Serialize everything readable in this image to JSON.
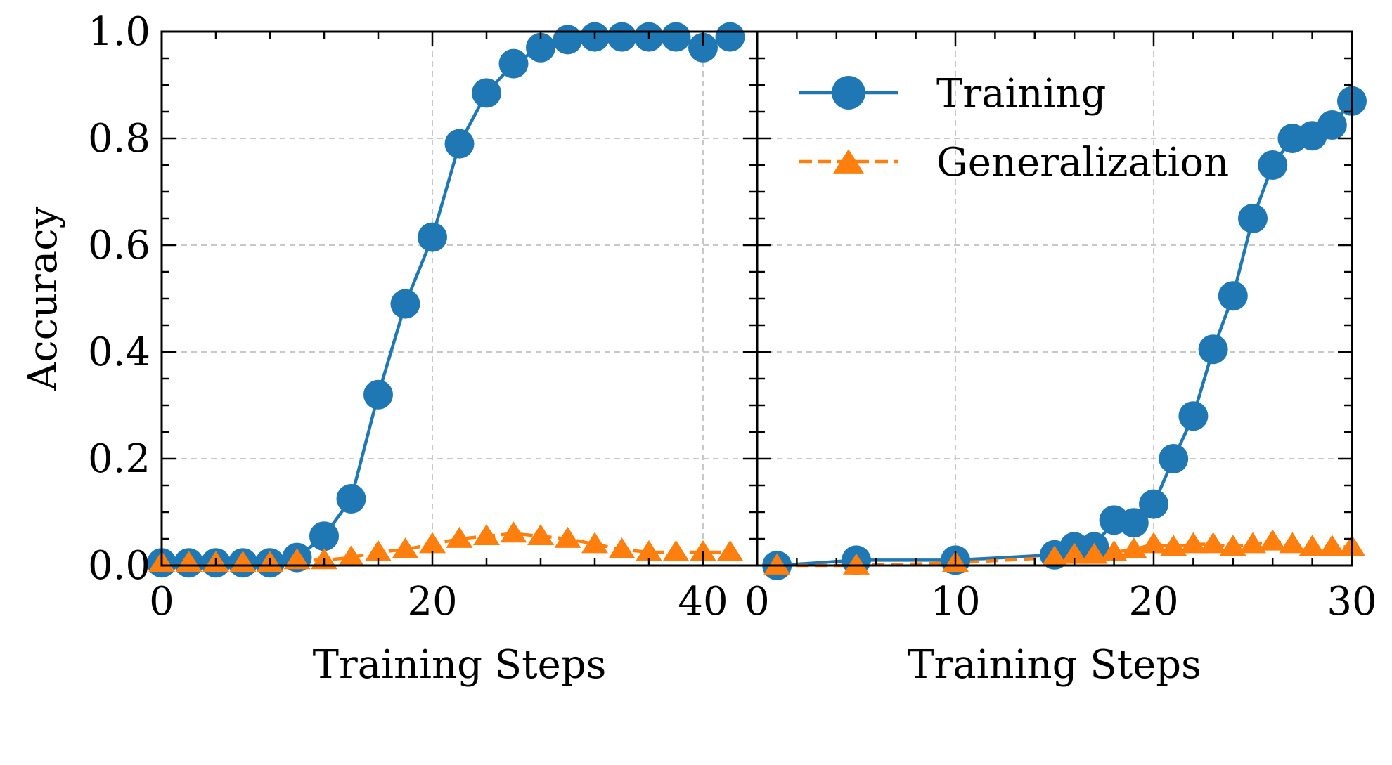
{
  "chart_data": [
    {
      "type": "line",
      "xlabel": "Training Steps",
      "ylabel": "Accuracy",
      "xlim": [
        0,
        44
      ],
      "ylim": [
        0,
        1.0
      ],
      "xticks": [
        0,
        20,
        40
      ],
      "yticks": [
        0.0,
        0.2,
        0.4,
        0.6,
        0.8,
        1.0
      ],
      "xtick_labels": [
        "0",
        "20",
        "40"
      ],
      "ytick_labels": [
        "0.0",
        "0.2",
        "0.4",
        "0.6",
        "0.8",
        "1.0"
      ],
      "grid": true,
      "series": [
        {
          "name": "Training",
          "color": "#1f77b4",
          "marker": "circle",
          "linestyle": "solid",
          "x": [
            0,
            2,
            4,
            6,
            8,
            10,
            12,
            14,
            16,
            18,
            20,
            22,
            24,
            26,
            28,
            30,
            32,
            34,
            36,
            38,
            40,
            42
          ],
          "y": [
            0.005,
            0.005,
            0.005,
            0.005,
            0.005,
            0.015,
            0.055,
            0.125,
            0.32,
            0.49,
            0.615,
            0.79,
            0.885,
            0.94,
            0.97,
            0.985,
            0.99,
            0.99,
            0.99,
            0.99,
            0.97,
            0.99
          ]
        },
        {
          "name": "Generalization",
          "color": "#ff7f0e",
          "marker": "triangle",
          "linestyle": "dashed",
          "x": [
            0,
            2,
            4,
            6,
            8,
            10,
            12,
            14,
            16,
            18,
            20,
            22,
            24,
            26,
            28,
            30,
            32,
            34,
            36,
            38,
            40,
            42
          ],
          "y": [
            0.005,
            0.005,
            0.005,
            0.005,
            0.005,
            0.01,
            0.01,
            0.015,
            0.025,
            0.03,
            0.04,
            0.05,
            0.055,
            0.06,
            0.055,
            0.05,
            0.04,
            0.03,
            0.025,
            0.025,
            0.025,
            0.025
          ]
        }
      ]
    },
    {
      "type": "line",
      "xlabel": "Training Steps",
      "ylabel": "",
      "xlim": [
        0,
        30
      ],
      "ylim": [
        0,
        1.0
      ],
      "xticks": [
        0,
        10,
        20,
        30
      ],
      "xtick_labels": [
        "0",
        "10",
        "20",
        "30"
      ],
      "grid": true,
      "legend": "top-left",
      "series": [
        {
          "name": "Training",
          "color": "#1f77b4",
          "marker": "circle",
          "linestyle": "solid",
          "x": [
            1,
            5,
            10,
            15,
            16,
            17,
            18,
            19,
            20,
            21,
            22,
            23,
            24,
            25,
            26,
            27,
            28,
            29,
            30
          ],
          "y": [
            0.0,
            0.01,
            0.01,
            0.02,
            0.035,
            0.035,
            0.085,
            0.08,
            0.115,
            0.2,
            0.28,
            0.405,
            0.505,
            0.65,
            0.75,
            0.8,
            0.805,
            0.825,
            0.87
          ]
        },
        {
          "name": "Generalization",
          "color": "#ff7f0e",
          "marker": "triangle",
          "linestyle": "dashed",
          "x": [
            1,
            5,
            10,
            15,
            16,
            17,
            18,
            19,
            20,
            21,
            22,
            23,
            24,
            25,
            26,
            27,
            28,
            29,
            30
          ],
          "y": [
            0.0,
            0.0,
            0.005,
            0.015,
            0.02,
            0.02,
            0.025,
            0.03,
            0.04,
            0.035,
            0.04,
            0.04,
            0.035,
            0.04,
            0.045,
            0.04,
            0.035,
            0.035,
            0.035
          ]
        }
      ]
    }
  ]
}
